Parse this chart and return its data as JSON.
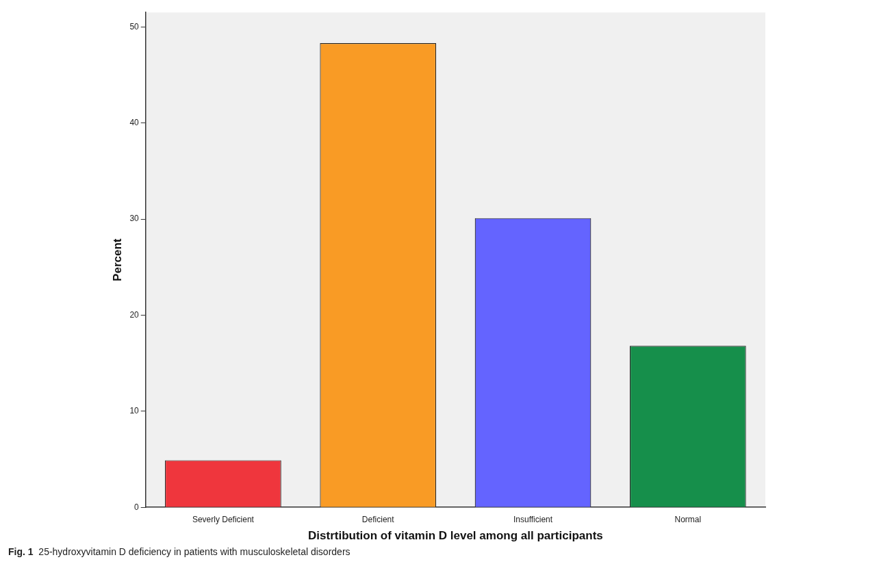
{
  "chart_data": {
    "type": "bar",
    "categories": [
      "Severly Deficient",
      "Deficient",
      "Insufficient",
      "Normal"
    ],
    "values": [
      4.9,
      48.3,
      30.1,
      16.8
    ],
    "colors": [
      "#ef363d",
      "#f99b25",
      "#6464ff",
      "#168f4b"
    ],
    "xlabel": "Distrtibution of vitamin D level among all participants",
    "ylabel": "Percent",
    "ylim": [
      0,
      51.5
    ],
    "yticks": [
      0,
      10,
      20,
      30,
      40,
      50
    ],
    "grid": false,
    "annotations": [
      "Fig. 1  25-hydroxyvitamin D deficiency in patients with musculoskeletal disorders"
    ]
  }
}
